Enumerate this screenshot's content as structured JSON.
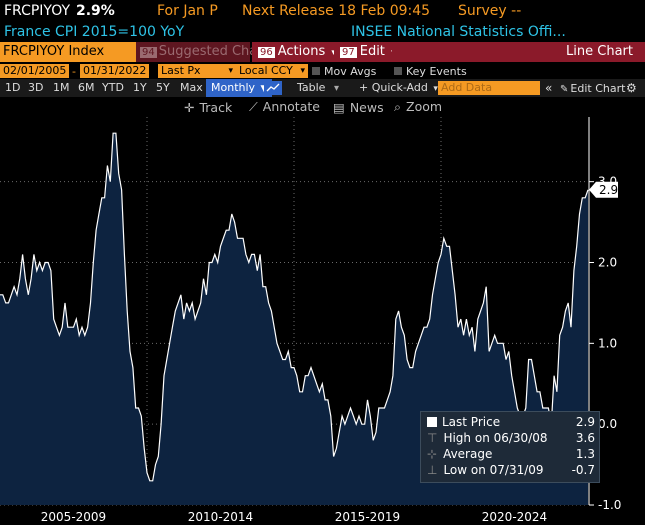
{
  "header": {
    "ticker": "FRCPIYOY",
    "last_value": "2.9%",
    "for_label": "For Jan P",
    "next_release": "Next Release 18 Feb 09:45",
    "survey": "Survey --",
    "description": "France CPI 2015=100 YoY",
    "source": "INSEE National Statistics Offi..."
  },
  "toolbar": {
    "index_field": "FRCPIYOY Index",
    "suggested_num": "94",
    "suggested_label": "Suggested Charts",
    "actions_num": "96",
    "actions_label": "Actions",
    "edit_num": "97",
    "edit_label": "Edit",
    "chart_type": "Line Chart"
  },
  "settings": {
    "start_date": "02/01/2005",
    "end_date": "01/31/2022",
    "price_field": "Last Px",
    "currency": "Local CCY",
    "mov_avgs": "Mov Avgs",
    "key_events": "Key Events"
  },
  "range_bar": {
    "ranges": [
      "1D",
      "3D",
      "1M",
      "6M",
      "YTD",
      "1Y",
      "5Y",
      "Max"
    ],
    "frequency": "Monthly",
    "table_label": "Table",
    "quick_add": "+ Quick-Add",
    "add_data_placeholder": "Add Data",
    "edit_chart": "Edit Chart"
  },
  "chart_tools": {
    "track": "Track",
    "annotate": "Annotate",
    "news": "News",
    "zoom": "Zoom"
  },
  "legend": {
    "last_price_label": "Last Price",
    "last_price_value": "2.9",
    "high_label": "High on 06/30/08",
    "high_value": "3.6",
    "average_label": "Average",
    "average_value": "1.3",
    "low_label": "Low on 07/31/09",
    "low_value": "-0.7"
  },
  "colors": {
    "amber": "#f59a23",
    "cyan": "#2ec3e6",
    "tab_red": "#8b1a2a",
    "area_fill": "#0d2340",
    "line": "#ffffff"
  },
  "chart_data": {
    "type": "area",
    "title": "France CPI 2015=100 YoY",
    "x_labels": [
      "2005-2009",
      "2010-2014",
      "2015-2019",
      "2020-2024"
    ],
    "y_ticks": [
      -1.0,
      0.0,
      1.0,
      2.0,
      3.0
    ],
    "ylim": [
      -1.0,
      3.8
    ],
    "last_value_label": "2.9",
    "grid": true,
    "series": [
      {
        "values": [
          1.6,
          1.6,
          1.5,
          1.5,
          1.6,
          1.7,
          1.6,
          1.8,
          2.1,
          1.8,
          1.6,
          1.8,
          2.1,
          1.9,
          2.0,
          1.9,
          2.0,
          2.0,
          1.9,
          1.3,
          1.2,
          1.1,
          1.2,
          1.5,
          1.2,
          1.2,
          1.2,
          1.3,
          1.1,
          1.2,
          1.1,
          1.2,
          1.5,
          2.0,
          2.4,
          2.6,
          2.8,
          2.8,
          3.2,
          3.0,
          3.6,
          3.6,
          3.1,
          2.9,
          2.1,
          1.4,
          0.9,
          0.7,
          0.2,
          0.2,
          0.1,
          -0.3,
          -0.6,
          -0.7,
          -0.7,
          -0.5,
          -0.4,
          0.0,
          0.6,
          0.8,
          1.0,
          1.2,
          1.4,
          1.5,
          1.6,
          1.3,
          1.5,
          1.4,
          1.5,
          1.3,
          1.4,
          1.5,
          1.8,
          1.6,
          2.0,
          2.0,
          2.1,
          2.0,
          2.2,
          2.3,
          2.4,
          2.4,
          2.6,
          2.5,
          2.3,
          2.3,
          2.3,
          2.1,
          2.0,
          2.1,
          2.1,
          1.9,
          2.1,
          1.7,
          1.7,
          1.5,
          1.4,
          1.2,
          1.0,
          0.9,
          0.8,
          0.8,
          0.9,
          0.7,
          0.7,
          0.6,
          0.4,
          0.4,
          0.6,
          0.6,
          0.7,
          0.6,
          0.5,
          0.4,
          0.5,
          0.3,
          0.3,
          0.1,
          -0.4,
          -0.3,
          -0.1,
          0.1,
          0.0,
          0.1,
          0.2,
          0.1,
          0.0,
          0.1,
          0.0,
          0.0,
          0.3,
          0.1,
          -0.2,
          -0.1,
          0.2,
          0.2,
          0.2,
          0.3,
          0.4,
          0.6,
          1.3,
          1.4,
          1.2,
          1.1,
          0.8,
          0.7,
          0.7,
          0.9,
          1.0,
          1.1,
          1.2,
          1.2,
          1.3,
          1.6,
          1.8,
          2.0,
          2.1,
          2.3,
          2.2,
          2.2,
          1.9,
          1.6,
          1.2,
          1.3,
          1.1,
          1.3,
          1.1,
          1.2,
          0.9,
          1.3,
          1.4,
          1.5,
          1.7,
          0.9,
          1.0,
          1.1,
          1.0,
          1.0,
          1.0,
          0.8,
          0.9,
          0.6,
          0.4,
          0.2,
          0.1,
          0.1,
          0.2,
          0.8,
          0.8,
          0.6,
          0.4,
          0.4,
          0.2,
          0.2,
          0.2,
          0.0,
          0.6,
          0.4,
          1.1,
          1.2,
          1.4,
          1.5,
          1.2,
          1.9,
          2.2,
          2.6,
          2.8,
          2.8,
          2.9
        ]
      }
    ]
  }
}
